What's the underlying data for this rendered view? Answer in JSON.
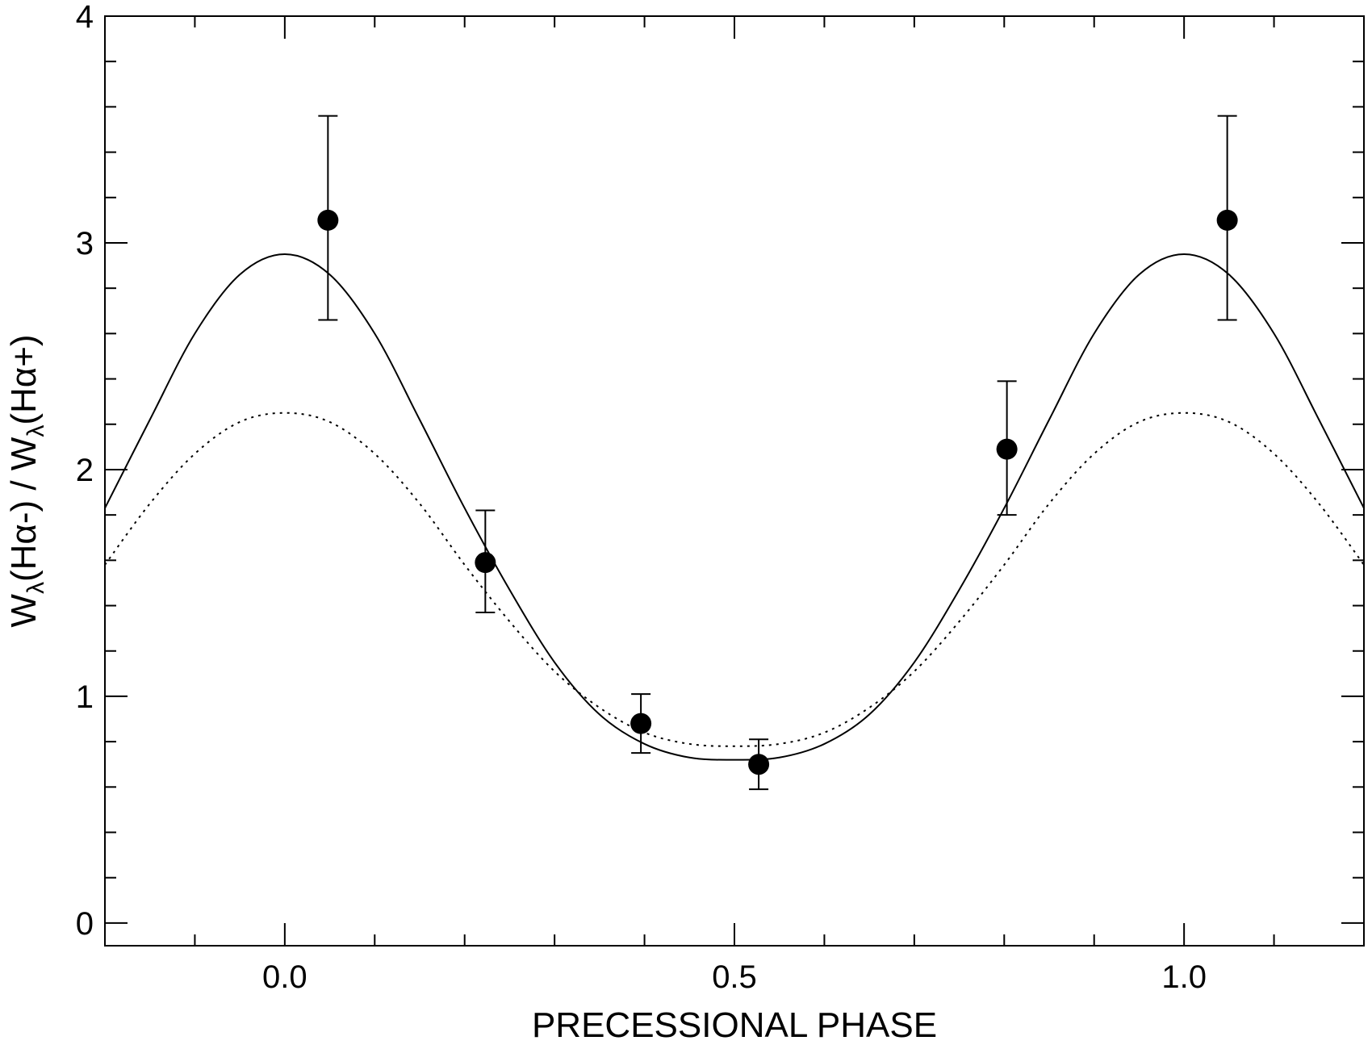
{
  "chart_data": {
    "type": "scatter",
    "xlabel": "PRECESSIONAL PHASE",
    "ylabel": {
      "parts": [
        {
          "text": "W",
          "sub": false
        },
        {
          "text": "λ",
          "sub": true
        },
        {
          "text": "(Hα-) / W",
          "sub": false
        },
        {
          "text": "λ",
          "sub": true
        },
        {
          "text": "(Hα+)",
          "sub": false
        }
      ]
    },
    "xlim": [
      -0.2,
      1.2
    ],
    "ylim": [
      -0.1,
      4.0
    ],
    "x_ticks": [
      {
        "value": 0.0,
        "label": "0.0"
      },
      {
        "value": 0.5,
        "label": "0.5"
      },
      {
        "value": 1.0,
        "label": "1.0"
      }
    ],
    "x_minor_step": 0.1,
    "y_ticks": [
      {
        "value": 0,
        "label": "0"
      },
      {
        "value": 1,
        "label": "1"
      },
      {
        "value": 2,
        "label": "2"
      },
      {
        "value": 3,
        "label": "3"
      },
      {
        "value": 4,
        "label": "4"
      }
    ],
    "y_minor_step": 0.2,
    "grid": false,
    "points": [
      {
        "x": 0.048,
        "y": 3.1,
        "err_low": 2.66,
        "err_high": 3.56
      },
      {
        "x": 0.223,
        "y": 1.59,
        "err_low": 1.37,
        "err_high": 1.82
      },
      {
        "x": 0.396,
        "y": 0.88,
        "err_low": 0.75,
        "err_high": 1.01
      },
      {
        "x": 0.527,
        "y": 0.7,
        "err_low": 0.59,
        "err_high": 0.81
      },
      {
        "x": 0.803,
        "y": 2.09,
        "err_low": 1.8,
        "err_high": 2.39
      },
      {
        "x": 1.048,
        "y": 3.1,
        "err_low": 2.66,
        "err_high": 3.56
      }
    ],
    "curves": [
      {
        "style": "solid",
        "x": [
          -0.2,
          -0.15,
          -0.1,
          -0.05,
          0,
          0.05,
          0.1,
          0.15,
          0.2,
          0.25,
          0.3,
          0.35,
          0.4,
          0.45,
          0.5,
          0.55,
          0.6,
          0.65,
          0.7,
          0.75,
          0.8,
          0.85,
          0.9,
          0.95,
          1.0,
          1.05,
          1.1,
          1.15,
          1.2
        ],
        "y": [
          1.83,
          2.22,
          2.6,
          2.86,
          2.95,
          2.86,
          2.6,
          2.22,
          1.83,
          1.47,
          1.15,
          0.92,
          0.79,
          0.73,
          0.72,
          0.73,
          0.79,
          0.92,
          1.15,
          1.47,
          1.83,
          2.22,
          2.6,
          2.86,
          2.95,
          2.86,
          2.6,
          2.22,
          1.83
        ]
      },
      {
        "style": "dotted",
        "x": [
          -0.2,
          -0.15,
          -0.1,
          -0.05,
          0,
          0.05,
          0.1,
          0.15,
          0.2,
          0.25,
          0.3,
          0.35,
          0.4,
          0.45,
          0.5,
          0.55,
          0.6,
          0.65,
          0.7,
          0.75,
          0.8,
          0.85,
          0.9,
          0.95,
          1.0,
          1.05,
          1.1,
          1.15,
          1.2
        ],
        "y": [
          1.58,
          1.85,
          2.07,
          2.21,
          2.25,
          2.21,
          2.07,
          1.85,
          1.58,
          1.33,
          1.11,
          0.95,
          0.84,
          0.79,
          0.78,
          0.79,
          0.84,
          0.95,
          1.11,
          1.33,
          1.58,
          1.85,
          2.07,
          2.21,
          2.25,
          2.21,
          2.07,
          1.85,
          1.58
        ]
      }
    ]
  }
}
